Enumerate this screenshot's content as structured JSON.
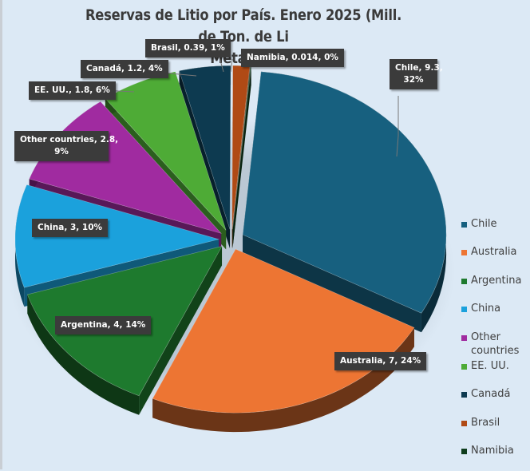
{
  "chart_data": {
    "type": "pie",
    "style": "3d-exploded",
    "title": "Reservas de Litio por País. Enero 2025 (Mill. de Ton. de  Li Metálico)",
    "title_lines": [
      "Reservas de Litio por País. Enero 2025 (Mill. de Ton. de  Li",
      "Metálico)"
    ],
    "categories": [
      "Chile",
      "Australia",
      "Argentina",
      "China",
      "Other countries",
      "EE. UU.",
      "Canadá",
      "Brasil",
      "Namibia"
    ],
    "values": [
      9.3,
      7,
      4,
      3,
      2.8,
      1.8,
      1.2,
      0.39,
      0.014
    ],
    "percentages": [
      32,
      24,
      14,
      10,
      9,
      6,
      4,
      1,
      0
    ],
    "colors": [
      "#17607f",
      "#ed7533",
      "#1e7a2e",
      "#1ba1dc",
      "#a02ba0",
      "#4eab36",
      "#0d3a50",
      "#b04a15",
      "#0f3d1c"
    ],
    "data_labels": [
      "Chile, 9.3, 32%",
      "Australia, 7, 24%",
      "Argentina, 4, 14%",
      "China, 3, 10%",
      "Other countries, 2.8, 9%",
      "EE. UU., 1.8, 6%",
      "Canadá, 1.2, 4%",
      "Brasil, 0.39, 1%",
      "Namibia, 0.014, 0%"
    ],
    "legend_position": "right"
  },
  "title": {
    "line1": "Reservas de Litio por País. Enero 2025 (Mill. de Ton. de  Li",
    "line2": "Metálico)"
  },
  "labels": {
    "chile_l1": "Chile, 9.3,",
    "chile_l2": "32%",
    "australia": "Australia, 7, 24%",
    "argentina": "Argentina, 4, 14%",
    "china": "China, 3, 10%",
    "other_l1": "Other countries, 2.8,",
    "other_l2": "9%",
    "eeuu": "EE. UU., 1.8, 6%",
    "canada": "Canadá, 1.2, 4%",
    "brasil": "Brasil, 0.39, 1%",
    "namibia": "Namibia, 0.014, 0%"
  },
  "legend": {
    "items": [
      {
        "label": "Chile",
        "color": "#17607f"
      },
      {
        "label": "Australia",
        "color": "#ed7533"
      },
      {
        "label": "Argentina",
        "color": "#1e7a2e"
      },
      {
        "label": "China",
        "color": "#1ba1dc"
      },
      {
        "label": "Other countries",
        "color": "#a02ba0"
      },
      {
        "label": "EE. UU.",
        "color": "#4eab36"
      },
      {
        "label": "Canadá",
        "color": "#0d3a50"
      },
      {
        "label": "Brasil",
        "color": "#b04a15"
      },
      {
        "label": "Namibia",
        "color": "#0f3d1c"
      }
    ]
  }
}
